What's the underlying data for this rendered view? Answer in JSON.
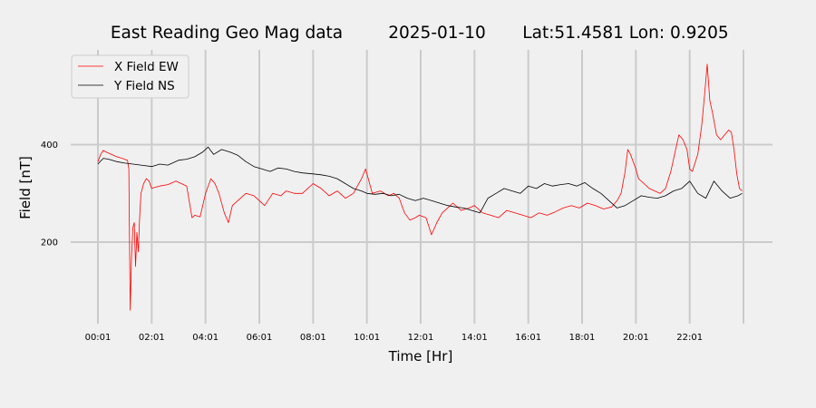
{
  "chart_data": {
    "type": "line",
    "title": {
      "name": "East Reading Geo Mag data",
      "date": "2025-01-10",
      "location": "Lat:51.4581  Lon: 0.9205"
    },
    "xlabel": "Time  [Hr]",
    "ylabel": "Field  [nT]",
    "x_unit": "hours",
    "xlim": [
      0.0,
      24.0
    ],
    "ylim": [
      40,
      600
    ],
    "x_gridlines_hr": [
      0.0,
      2.0,
      4.0,
      6.0,
      8.0,
      10.0,
      12.0,
      14.0,
      16.0,
      18.0,
      20.0,
      22.0,
      24.0
    ],
    "x_ticks": [
      {
        "x": 0.0,
        "label": "00:01"
      },
      {
        "x": 2.0,
        "label": "02:01"
      },
      {
        "x": 4.0,
        "label": "04:01"
      },
      {
        "x": 6.0,
        "label": "06:01"
      },
      {
        "x": 8.0,
        "label": "08:01"
      },
      {
        "x": 10.0,
        "label": "10:01"
      },
      {
        "x": 12.0,
        "label": "12:01"
      },
      {
        "x": 14.0,
        "label": "14:01"
      },
      {
        "x": 16.0,
        "label": "16:01"
      },
      {
        "x": 18.0,
        "label": "18:01"
      },
      {
        "x": 20.0,
        "label": "20:01"
      },
      {
        "x": 22.0,
        "label": "22:01"
      }
    ],
    "y_ticks": [
      200,
      400
    ],
    "grid": true,
    "legend_position": "top-left",
    "series": [
      {
        "name": "X Field EW",
        "color": "#ff0000",
        "x": [
          0.0,
          0.1,
          0.2,
          0.3,
          0.5,
          0.7,
          0.9,
          1.1,
          1.15,
          1.2,
          1.25,
          1.3,
          1.35,
          1.4,
          1.45,
          1.5,
          1.55,
          1.6,
          1.7,
          1.8,
          1.9,
          2.0,
          2.1,
          2.3,
          2.6,
          2.9,
          3.1,
          3.3,
          3.5,
          3.6,
          3.8,
          4.0,
          4.2,
          4.35,
          4.5,
          4.7,
          4.85,
          5.0,
          5.2,
          5.5,
          5.8,
          6.0,
          6.2,
          6.5,
          6.8,
          7.0,
          7.3,
          7.6,
          8.0,
          8.3,
          8.6,
          8.9,
          9.2,
          9.5,
          9.8,
          9.95,
          10.05,
          10.2,
          10.5,
          10.8,
          11.0,
          11.2,
          11.4,
          11.6,
          11.8,
          11.95,
          12.2,
          12.4,
          12.6,
          12.8,
          13.0,
          13.2,
          13.5,
          13.8,
          14.0,
          14.3,
          14.6,
          14.9,
          15.2,
          15.5,
          15.8,
          16.1,
          16.4,
          16.7,
          17.0,
          17.3,
          17.6,
          17.9,
          18.2,
          18.5,
          18.8,
          19.1,
          19.3,
          19.45,
          19.6,
          19.7,
          19.8,
          20.0,
          20.1,
          20.3,
          20.5,
          20.7,
          20.9,
          21.1,
          21.3,
          21.5,
          21.6,
          21.75,
          21.9,
          22.0,
          22.1,
          22.3,
          22.45,
          22.55,
          22.65,
          22.75,
          22.85,
          23.0,
          23.15,
          23.3,
          23.45,
          23.55,
          23.65,
          23.75,
          23.85,
          23.95
        ],
        "y": [
          365,
          380,
          388,
          385,
          380,
          375,
          372,
          368,
          350,
          60,
          170,
          230,
          240,
          150,
          220,
          180,
          250,
          300,
          320,
          330,
          325,
          310,
          312,
          315,
          318,
          325,
          320,
          315,
          250,
          255,
          252,
          300,
          330,
          320,
          300,
          260,
          240,
          275,
          285,
          300,
          295,
          285,
          275,
          300,
          295,
          305,
          300,
          300,
          320,
          310,
          295,
          305,
          290,
          300,
          330,
          350,
          330,
          300,
          305,
          295,
          300,
          290,
          260,
          245,
          250,
          255,
          250,
          215,
          240,
          260,
          270,
          280,
          265,
          270,
          275,
          260,
          255,
          250,
          265,
          260,
          255,
          250,
          260,
          255,
          262,
          270,
          275,
          270,
          280,
          275,
          268,
          272,
          285,
          300,
          345,
          390,
          380,
          350,
          330,
          320,
          310,
          305,
          300,
          310,
          345,
          395,
          420,
          410,
          390,
          350,
          345,
          380,
          440,
          500,
          565,
          490,
          465,
          420,
          410,
          420,
          430,
          425,
          390,
          340,
          310,
          305
        ]
      },
      {
        "name": "Y Field NS",
        "color": "#000000",
        "x": [
          0.0,
          0.2,
          0.4,
          0.7,
          1.0,
          1.3,
          1.6,
          2.0,
          2.3,
          2.6,
          3.0,
          3.3,
          3.6,
          3.9,
          4.1,
          4.3,
          4.6,
          4.9,
          5.2,
          5.5,
          5.8,
          6.1,
          6.4,
          6.7,
          7.0,
          7.3,
          7.6,
          8.0,
          8.3,
          8.6,
          8.9,
          9.2,
          9.5,
          9.8,
          10.0,
          10.3,
          10.6,
          10.9,
          11.2,
          11.5,
          11.8,
          12.1,
          12.4,
          12.7,
          13.0,
          13.3,
          13.6,
          13.9,
          14.2,
          14.5,
          14.8,
          15.1,
          15.4,
          15.7,
          16.0,
          16.3,
          16.6,
          16.9,
          17.2,
          17.5,
          17.8,
          18.1,
          18.4,
          18.7,
          19.0,
          19.3,
          19.6,
          19.9,
          20.2,
          20.5,
          20.8,
          21.1,
          21.4,
          21.7,
          22.0,
          22.3,
          22.6,
          22.9,
          23.2,
          23.5,
          23.8,
          23.95
        ],
        "y": [
          360,
          372,
          370,
          365,
          362,
          360,
          358,
          355,
          360,
          358,
          368,
          370,
          375,
          385,
          395,
          380,
          390,
          385,
          378,
          365,
          355,
          350,
          345,
          352,
          350,
          345,
          342,
          340,
          338,
          335,
          330,
          320,
          310,
          305,
          300,
          298,
          300,
          295,
          298,
          290,
          285,
          290,
          285,
          280,
          275,
          272,
          270,
          265,
          260,
          290,
          300,
          310,
          305,
          300,
          315,
          310,
          320,
          315,
          318,
          320,
          315,
          322,
          310,
          300,
          285,
          270,
          275,
          285,
          295,
          292,
          290,
          295,
          305,
          310,
          325,
          300,
          290,
          325,
          305,
          290,
          295,
          300
        ]
      }
    ]
  }
}
